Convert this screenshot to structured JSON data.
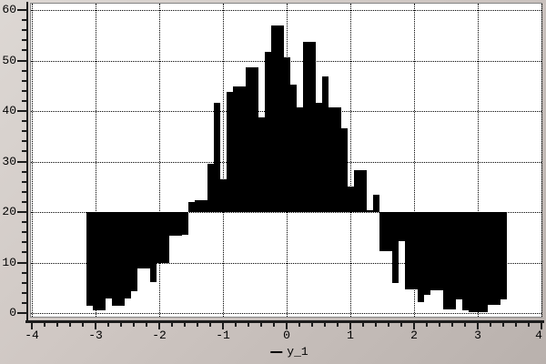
{
  "chart_data": {
    "type": "bar",
    "title": "",
    "xlabel": "",
    "ylabel": "",
    "x_range": [
      -4,
      4
    ],
    "y_range": [
      0,
      60
    ],
    "x_major_step": 1,
    "x_minor_step": 0.2,
    "y_major_step": 10,
    "y_minor_step": 2,
    "grid": "dotted",
    "legend_position": "bottom-center",
    "baseline": 20,
    "bin_width": 0.1,
    "bin_centers": [
      -3.1,
      -3.0,
      -2.9,
      -2.8,
      -2.7,
      -2.6,
      -2.5,
      -2.4,
      -2.3,
      -2.2,
      -2.1,
      -2.0,
      -1.9,
      -1.8,
      -1.7,
      -1.6,
      -1.5,
      -1.4,
      -1.3,
      -1.2,
      -1.1,
      -1.0,
      -0.9,
      -0.8,
      -0.7,
      -0.6,
      -0.5,
      -0.4,
      -0.3,
      -0.2,
      -0.1,
      0.0,
      0.1,
      0.2,
      0.3,
      0.4,
      0.5,
      0.6,
      0.7,
      0.8,
      0.9,
      1.0,
      1.1,
      1.2,
      1.3,
      1.4,
      1.5,
      1.6,
      1.7,
      1.8,
      1.9,
      2.0,
      2.1,
      2.2,
      2.3,
      2.4,
      2.5,
      2.6,
      2.7,
      2.8,
      2.9,
      3.0,
      3.1,
      3.2,
      3.3,
      3.4
    ],
    "values": [
      1.4,
      0.5,
      0.5,
      2.9,
      1.4,
      1.5,
      2.9,
      4.3,
      8.8,
      8.8,
      6.1,
      9.9,
      9.9,
      15.3,
      15.3,
      15.5,
      22.0,
      22.3,
      22.3,
      29.5,
      41.7,
      26.4,
      43.8,
      44.9,
      44.9,
      48.6,
      48.6,
      38.8,
      51.8,
      56.9,
      56.9,
      50.6,
      45.2,
      40.8,
      53.7,
      53.7,
      41.7,
      46.8,
      40.8,
      40.8,
      36.5,
      25.0,
      28.3,
      28.3,
      20.4,
      23.5,
      12.3,
      12.3,
      5.9,
      14.2,
      4.7,
      4.7,
      2.1,
      3.6,
      4.5,
      4.5,
      0.7,
      0.7,
      2.7,
      0.5,
      0.2,
      0.2,
      0.2,
      1.6,
      1.6,
      2.7
    ],
    "x_tick_labels": [
      "-4",
      "-3",
      "-2",
      "-1",
      "0",
      "1",
      "2",
      "3",
      "4"
    ],
    "y_tick_labels": [
      "0",
      "10",
      "20",
      "30",
      "40",
      "50",
      "60"
    ],
    "legend": {
      "label": "y_1",
      "marker": "line"
    }
  },
  "colors": {
    "bar": "#000000",
    "canvas": "#ffffff",
    "grid": "#000000",
    "axis": "#1c1c1c",
    "frame": "#848484",
    "text": "#000000",
    "background_light": "#ddd8d4",
    "background_dark": "#b9b1ad"
  }
}
